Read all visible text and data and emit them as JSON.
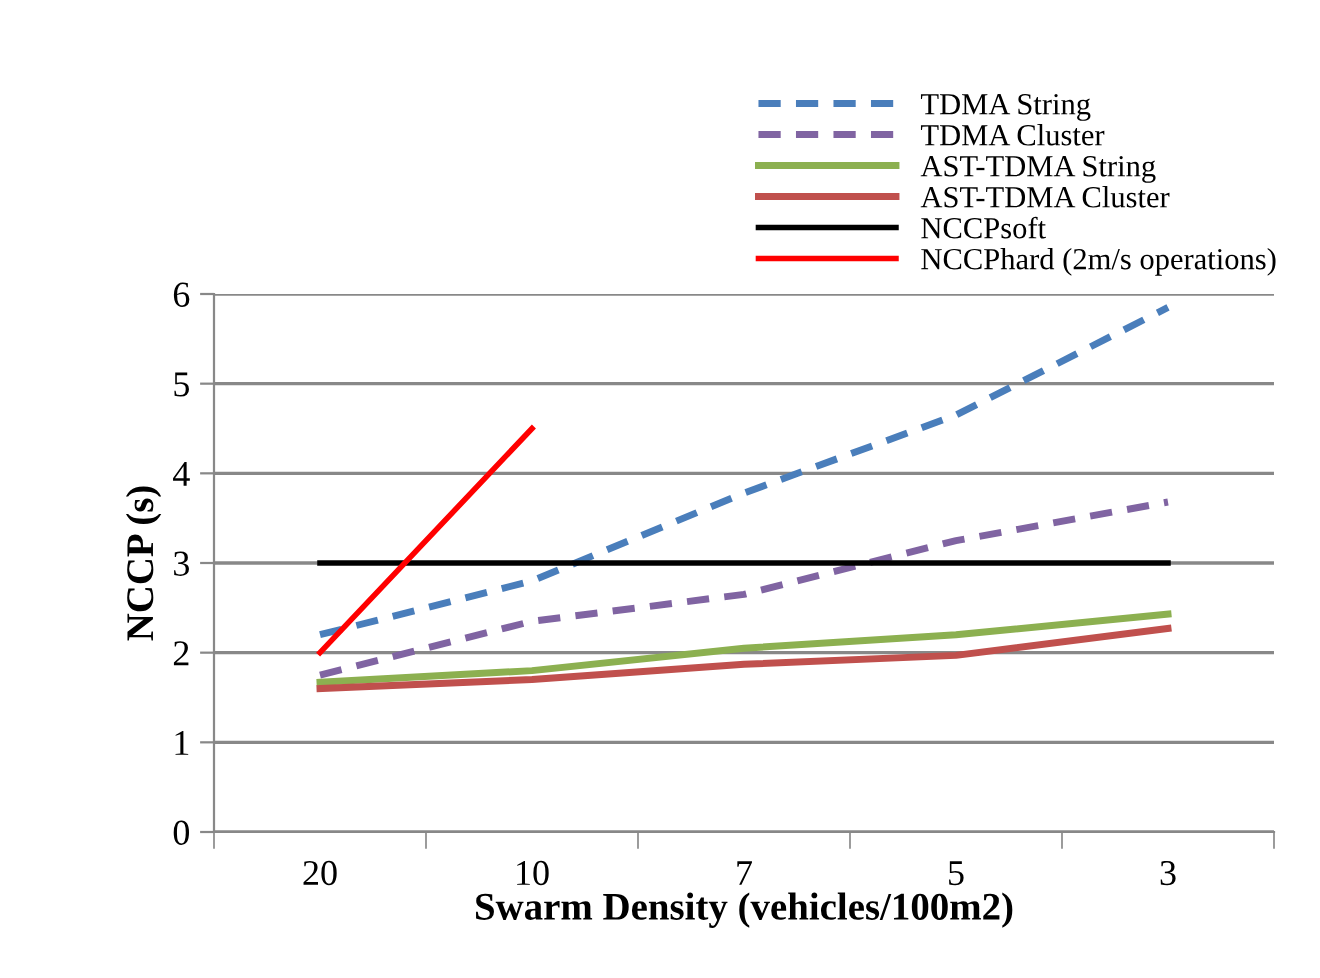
{
  "chart_data": {
    "type": "line",
    "xlabel": "Swarm Density (vehicles/100m2)",
    "ylabel": "NCCP (s)",
    "categories": [
      "20",
      "10",
      "7",
      "5",
      "3"
    ],
    "ylim": [
      0,
      6
    ],
    "yticks": [
      0,
      1,
      2,
      3,
      4,
      5,
      6
    ],
    "grid": "y",
    "legend": "top right",
    "marker": "none",
    "series": [
      {
        "name": "TDMA String",
        "color": "#4a7ebb",
        "line_style": "dashed",
        "values": [
          2.2,
          2.8,
          3.78,
          4.65,
          5.85
        ]
      },
      {
        "name": "TDMA Cluster",
        "color": "#8064a2",
        "line_style": "dashed",
        "values": [
          1.75,
          2.35,
          2.65,
          3.25,
          3.68
        ]
      },
      {
        "name": "AST-TDMA String",
        "color": "#8cb050",
        "line_style": "solid",
        "values": [
          1.67,
          1.8,
          2.05,
          2.2,
          2.43
        ]
      },
      {
        "name": "AST-TDMA Cluster",
        "color": "#c0504d",
        "line_style": "solid",
        "values": [
          1.6,
          1.7,
          1.87,
          1.97,
          2.27
        ]
      },
      {
        "name": "NCCPsoft",
        "color": "#000000",
        "line_style": "solid",
        "values": [
          3,
          3,
          3,
          3,
          3
        ]
      },
      {
        "name": "NCCPhard (2m/s operations)",
        "color": "#ff0000",
        "line_style": "solid",
        "values": [
          2,
          4.5,
          null,
          null,
          null
        ]
      }
    ]
  }
}
